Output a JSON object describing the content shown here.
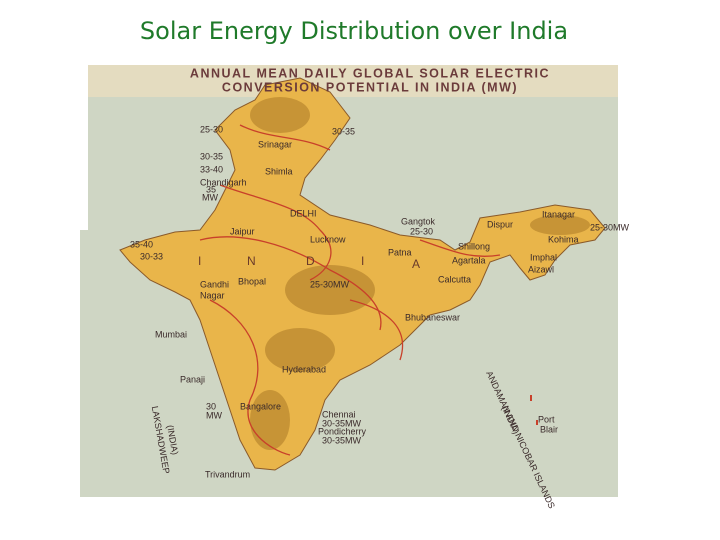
{
  "title": "Solar Energy Distribution over India",
  "map": {
    "heading": [
      "ANNUAL MEAN DAILY GLOBAL SOLAR ELECTRIC",
      "CONVERSION POTENTIAL IN INDIA (MW)"
    ],
    "labels": [
      "25-30",
      "30-35",
      "Srinagar",
      "30-35",
      "33-40",
      "Shimla",
      "Chandigarh",
      "35",
      "MW",
      "DELHI",
      "Jaipur",
      "Lucknow",
      "35-40",
      "30-33",
      "I",
      "N",
      "D",
      "I",
      "A",
      "Patna",
      "Gangtok",
      "Itanagar",
      "Dispur",
      "25-30",
      "25-30MW",
      "Kohima",
      "Shillong",
      "Agartala",
      "Imphal",
      "Aizawl",
      "Calcutta",
      "Gandhi",
      "Nagar",
      "Bhopal",
      "25-30MW",
      "Bhubaneswar",
      "Mumbai",
      "Hyderabad",
      "Panaji",
      "30",
      "MW",
      "Bangalore",
      "Chennai",
      "30-35MW",
      "Pondicherry",
      "30-35MW",
      "Port",
      "Blair",
      "Trivandrum"
    ],
    "rotated": [
      "LAKSHADWEEP",
      "(INDIA)",
      "ANDAMAN AND NICOBAR ISLANDS",
      "(INDIA)"
    ]
  }
}
